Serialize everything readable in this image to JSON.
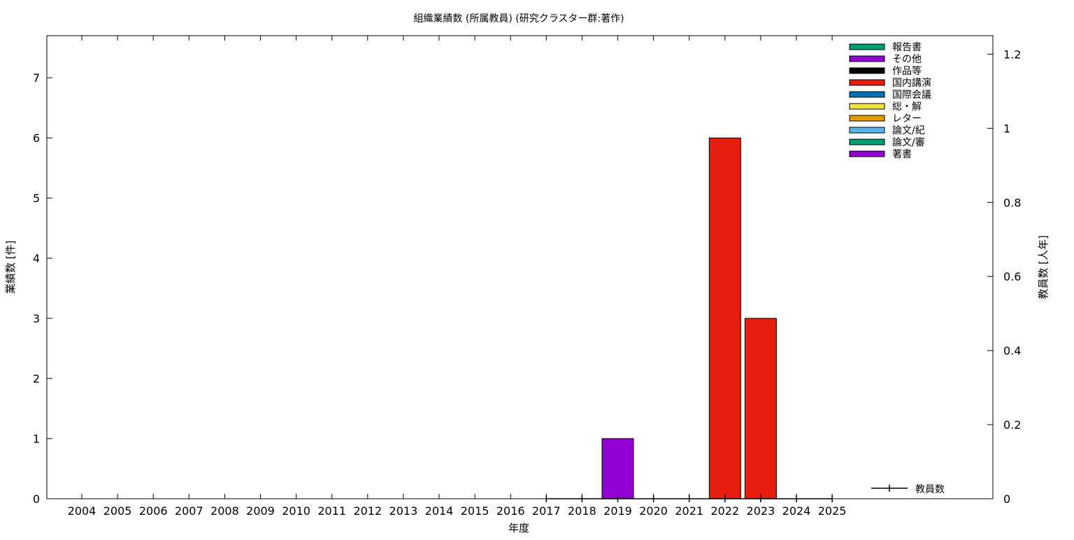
{
  "chart_data": {
    "type": "bar",
    "title": "組織業績数 (所属教員) (研究クラスター群:著作)",
    "xlabel": "年度",
    "ylabel": "業績数 [件]",
    "y2label": "教員数 [人年]",
    "categories": [
      "2004",
      "2005",
      "2006",
      "2007",
      "2008",
      "2009",
      "2010",
      "2011",
      "2012",
      "2013",
      "2014",
      "2015",
      "2016",
      "2017",
      "2018",
      "2019",
      "2020",
      "2021",
      "2022",
      "2023",
      "2024",
      "2025"
    ],
    "ylim": [
      0,
      7.7
    ],
    "y2lim": [
      0,
      1.25
    ],
    "yticks": [
      0,
      1,
      2,
      3,
      4,
      5,
      6,
      7
    ],
    "y2ticks": [
      "0",
      "0.2",
      "0.4",
      "0.6",
      "0.8",
      "1",
      "1.2"
    ],
    "grid": false,
    "legend_position": "top-right",
    "series": [
      {
        "name": "報告書",
        "color": "#009e73",
        "values": [
          0,
          0,
          0,
          0,
          0,
          0,
          0,
          0,
          0,
          0,
          0,
          0,
          0,
          0,
          0,
          0,
          0,
          0,
          0,
          0,
          0,
          0
        ]
      },
      {
        "name": "その他",
        "color": "#9400d3",
        "values": [
          0,
          0,
          0,
          0,
          0,
          0,
          0,
          0,
          0,
          0,
          0,
          0,
          0,
          0,
          0,
          0,
          0,
          0,
          0,
          0,
          0,
          0
        ]
      },
      {
        "name": "作品等",
        "color": "#000000",
        "values": [
          0,
          0,
          0,
          0,
          0,
          0,
          0,
          0,
          0,
          0,
          0,
          0,
          0,
          0,
          0,
          0,
          0,
          0,
          0,
          0,
          0,
          0
        ]
      },
      {
        "name": "国内講演",
        "color": "#e51e10",
        "values": [
          0,
          0,
          0,
          0,
          0,
          0,
          0,
          0,
          0,
          0,
          0,
          0,
          0,
          0,
          0,
          0,
          0,
          0,
          6,
          3,
          0,
          0
        ]
      },
      {
        "name": "国際会議",
        "color": "#0072b2",
        "values": [
          0,
          0,
          0,
          0,
          0,
          0,
          0,
          0,
          0,
          0,
          0,
          0,
          0,
          0,
          0,
          0,
          0,
          0,
          0,
          0,
          0,
          0
        ]
      },
      {
        "name": "総・解",
        "color": "#f0e442",
        "values": [
          0,
          0,
          0,
          0,
          0,
          0,
          0,
          0,
          0,
          0,
          0,
          0,
          0,
          0,
          0,
          0,
          0,
          0,
          0,
          0,
          0,
          0
        ]
      },
      {
        "name": "レター",
        "color": "#e69f00",
        "values": [
          0,
          0,
          0,
          0,
          0,
          0,
          0,
          0,
          0,
          0,
          0,
          0,
          0,
          0,
          0,
          0,
          0,
          0,
          0,
          0,
          0,
          0
        ]
      },
      {
        "name": "論文/紀",
        "color": "#56b4e9",
        "values": [
          0,
          0,
          0,
          0,
          0,
          0,
          0,
          0,
          0,
          0,
          0,
          0,
          0,
          0,
          0,
          0,
          0,
          0,
          0,
          0,
          0,
          0
        ]
      },
      {
        "name": "論文/審",
        "color": "#009e73",
        "values": [
          0,
          0,
          0,
          0,
          0,
          0,
          0,
          0,
          0,
          0,
          0,
          0,
          0,
          0,
          0,
          0,
          0,
          0,
          0,
          0,
          0,
          0
        ]
      },
      {
        "name": "著書",
        "color": "#9400d3",
        "values": [
          0,
          0,
          0,
          0,
          0,
          0,
          0,
          0,
          0,
          0,
          0,
          0,
          0,
          0,
          0,
          1,
          0,
          0,
          0,
          0,
          0,
          0
        ]
      }
    ],
    "line_series": {
      "name": "教員数",
      "color": "#000000",
      "axis": "y2",
      "categories": [
        "2017",
        "2018",
        "2019",
        "2020",
        "2021",
        "2022",
        "2023",
        "2024",
        "2025"
      ],
      "values": [
        0,
        0,
        0,
        0,
        0,
        0,
        0,
        0,
        0
      ]
    }
  }
}
